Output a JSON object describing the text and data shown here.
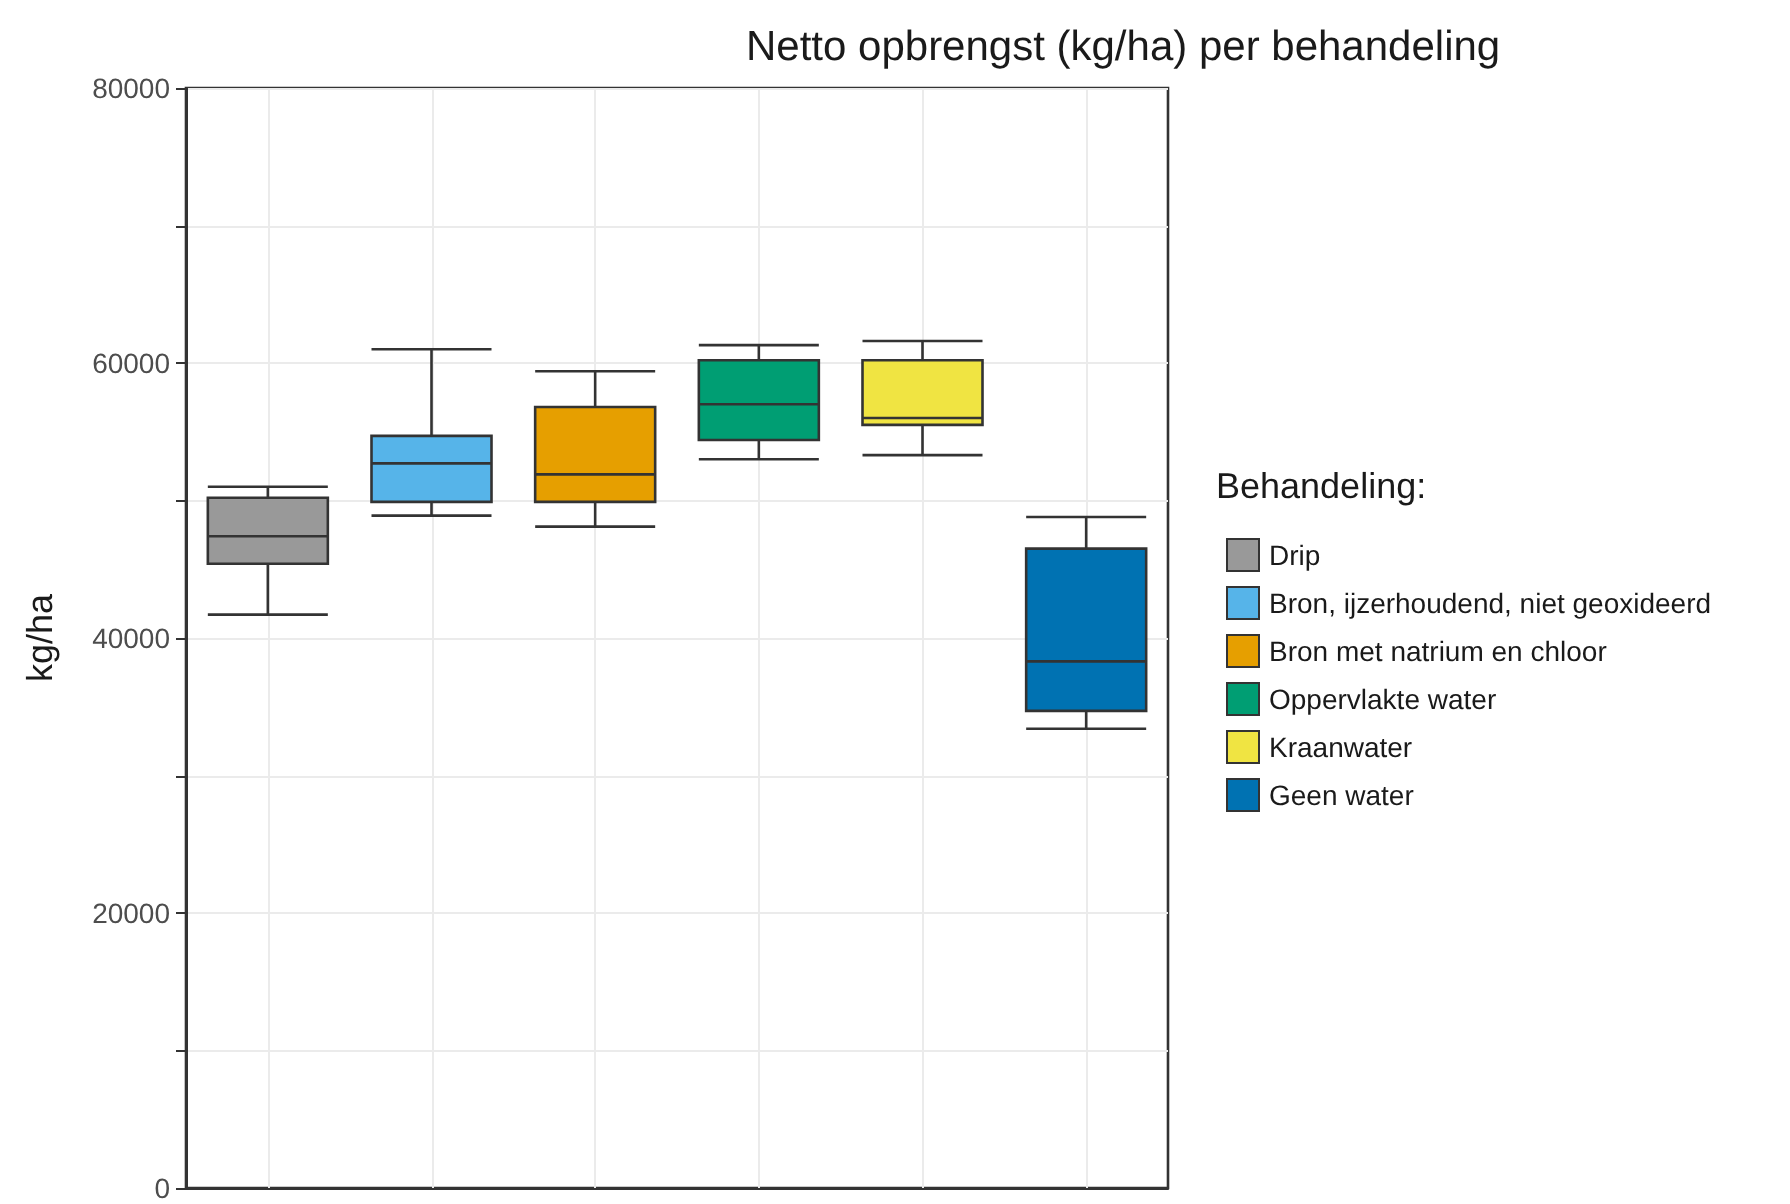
{
  "chart_data": {
    "type": "box",
    "title": "Netto opbrengst (kg/ha) per behandeling",
    "ylabel": "kg/ha",
    "legend_title": "Behandeling:",
    "categories": [
      null,
      null,
      null,
      null,
      null,
      null
    ],
    "ylim": [
      0,
      80000
    ],
    "yticks": [
      0,
      {
        "value": 10000,
        "label": null
      },
      20000,
      {
        "value": 30000,
        "label": null
      },
      40000,
      {
        "value": 50000,
        "label": null
      },
      60000,
      {
        "value": 70000,
        "label": null
      },
      80000
    ],
    "grid": true,
    "legend": "right",
    "series": [
      {
        "name": "Drip",
        "color": "#999999",
        "boxes": [
          {
            "low": 41700,
            "q1": 45400,
            "median": 47400,
            "q3": 50200,
            "high": 51000
          },
          null,
          null,
          null,
          null,
          null
        ]
      },
      {
        "name": "Bron, ijzerhoudend, niet geoxideerd",
        "color": "#56b4e9",
        "boxes": [
          null,
          {
            "low": 48900,
            "q1": 49900,
            "median": 52700,
            "q3": 54700,
            "high": 61000
          },
          null,
          null,
          null,
          null
        ]
      },
      {
        "name": "Bron met natrium en chloor",
        "color": "#e69f00",
        "boxes": [
          null,
          null,
          {
            "low": 48100,
            "q1": 49900,
            "median": 51900,
            "q3": 56800,
            "high": 59400
          },
          null,
          null,
          null
        ]
      },
      {
        "name": "Oppervlakte water",
        "color": "#009e73",
        "boxes": [
          null,
          null,
          null,
          {
            "low": 53000,
            "q1": 54400,
            "median": 57000,
            "q3": 60200,
            "high": 61300
          },
          null,
          null
        ]
      },
      {
        "name": "Kraanwater",
        "color": "#f0e442",
        "boxes": [
          null,
          null,
          null,
          null,
          {
            "low": 53300,
            "q1": 55500,
            "median": 56000,
            "q3": 60200,
            "high": 61600
          },
          null
        ]
      },
      {
        "name": "Geen water",
        "color": "#0072b2",
        "boxes": [
          null,
          null,
          null,
          null,
          null,
          {
            "low": 33400,
            "q1": 34700,
            "median": 38300,
            "q3": 46500,
            "high": 48800
          }
        ]
      }
    ]
  }
}
